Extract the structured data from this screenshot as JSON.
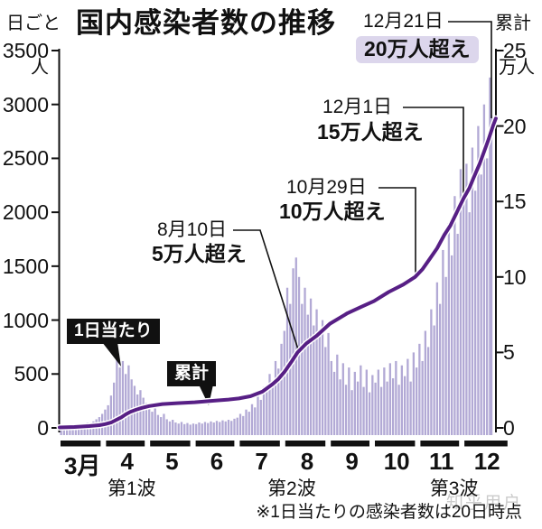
{
  "title": "国内感染者数の推移",
  "left_axis": {
    "title": "日ごと",
    "unit": "人",
    "ticks": [
      "3500",
      "3000",
      "2500",
      "2000",
      "1500",
      "1000",
      "500",
      "0"
    ]
  },
  "right_axis": {
    "title": "累計",
    "unit": "万人",
    "ticks": [
      "25",
      "20",
      "15",
      "10",
      "5",
      "0"
    ]
  },
  "series_labels": {
    "daily": "1日当たり",
    "cumulative": "累計"
  },
  "annotations": [
    {
      "date": "12月21日",
      "event": "20万人超え",
      "highlighted": true
    },
    {
      "date": "12月1日",
      "event": "15万人超え",
      "highlighted": false
    },
    {
      "date": "10月29日",
      "event": "10万人超え",
      "highlighted": false
    },
    {
      "date": "8月10日",
      "event": "5万人超え",
      "highlighted": false
    }
  ],
  "x_axis": {
    "months": [
      "3月",
      "4",
      "5",
      "6",
      "7",
      "8",
      "9",
      "10",
      "11",
      "12"
    ],
    "waves": [
      "第1波",
      "第2波",
      "第3波"
    ]
  },
  "footnote": "※1日当たりの感染者数は20日時点",
  "watermark": "知乎用户",
  "colors": {
    "bar": "#b2a9d5",
    "line": "#571f85",
    "line_casing": "#ffffff",
    "highlight_bg": "#dcd6ec",
    "label_bg": "#111111",
    "label_fg": "#ffffff",
    "axis": "#111111",
    "watermark": "#999999"
  },
  "chart_data": {
    "type": "bar+line",
    "title": "国内感染者数の推移",
    "x_axis": "day offset from 3月1日 (0 = 3月1日)",
    "bar_series": {
      "name": "1日当たり",
      "unit": "人",
      "axis": "left",
      "ylim": [
        0,
        3500
      ],
      "points": [
        [
          1,
          12
        ],
        [
          3,
          18
        ],
        [
          5,
          15
        ],
        [
          7,
          25
        ],
        [
          9,
          22
        ],
        [
          11,
          30
        ],
        [
          13,
          28
        ],
        [
          15,
          38
        ],
        [
          17,
          35
        ],
        [
          19,
          48
        ],
        [
          21,
          45
        ],
        [
          23,
          60
        ],
        [
          25,
          80
        ],
        [
          27,
          100
        ],
        [
          29,
          130
        ],
        [
          31,
          170
        ],
        [
          33,
          210
        ],
        [
          35,
          300
        ],
        [
          37,
          420
        ],
        [
          39,
          660
        ],
        [
          41,
          560
        ],
        [
          43,
          620
        ],
        [
          45,
          500
        ],
        [
          47,
          580
        ],
        [
          49,
          450
        ],
        [
          51,
          390
        ],
        [
          53,
          310
        ],
        [
          55,
          350
        ],
        [
          57,
          280
        ],
        [
          59,
          230
        ],
        [
          61,
          190
        ],
        [
          63,
          150
        ],
        [
          65,
          180
        ],
        [
          67,
          120
        ],
        [
          69,
          100
        ],
        [
          71,
          130
        ],
        [
          73,
          80
        ],
        [
          75,
          60
        ],
        [
          77,
          75
        ],
        [
          79,
          50
        ],
        [
          81,
          40
        ],
        [
          83,
          55
        ],
        [
          85,
          35
        ],
        [
          87,
          45
        ],
        [
          89,
          30
        ],
        [
          91,
          40
        ],
        [
          93,
          35
        ],
        [
          95,
          50
        ],
        [
          97,
          40
        ],
        [
          99,
          55
        ],
        [
          101,
          45
        ],
        [
          103,
          60
        ],
        [
          105,
          50
        ],
        [
          107,
          65
        ],
        [
          109,
          55
        ],
        [
          111,
          70
        ],
        [
          113,
          60
        ],
        [
          115,
          75
        ],
        [
          117,
          65
        ],
        [
          119,
          85
        ],
        [
          121,
          95
        ],
        [
          123,
          130
        ],
        [
          125,
          110
        ],
        [
          127,
          170
        ],
        [
          129,
          150
        ],
        [
          131,
          220
        ],
        [
          133,
          190
        ],
        [
          135,
          290
        ],
        [
          137,
          260
        ],
        [
          139,
          380
        ],
        [
          141,
          340
        ],
        [
          143,
          500
        ],
        [
          145,
          440
        ],
        [
          147,
          620
        ],
        [
          149,
          550
        ],
        [
          151,
          780
        ],
        [
          153,
          900
        ],
        [
          155,
          1300
        ],
        [
          157,
          1150
        ],
        [
          159,
          1480
        ],
        [
          161,
          1580
        ],
        [
          163,
          1400
        ],
        [
          165,
          1150
        ],
        [
          167,
          1300
        ],
        [
          169,
          1050
        ],
        [
          171,
          1200
        ],
        [
          173,
          950
        ],
        [
          175,
          1100
        ],
        [
          177,
          850
        ],
        [
          179,
          1000
        ],
        [
          181,
          750
        ],
        [
          183,
          880
        ],
        [
          185,
          620
        ],
        [
          187,
          520
        ],
        [
          189,
          680
        ],
        [
          191,
          450
        ],
        [
          193,
          600
        ],
        [
          195,
          400
        ],
        [
          197,
          560
        ],
        [
          199,
          350
        ],
        [
          201,
          520
        ],
        [
          203,
          430
        ],
        [
          205,
          580
        ],
        [
          207,
          380
        ],
        [
          209,
          540
        ],
        [
          211,
          330
        ],
        [
          213,
          490
        ],
        [
          215,
          420
        ],
        [
          217,
          540
        ],
        [
          219,
          380
        ],
        [
          221,
          560
        ],
        [
          223,
          430
        ],
        [
          225,
          600
        ],
        [
          227,
          460
        ],
        [
          229,
          620
        ],
        [
          231,
          400
        ],
        [
          233,
          580
        ],
        [
          235,
          480
        ],
        [
          237,
          640
        ],
        [
          239,
          430
        ],
        [
          241,
          700
        ],
        [
          243,
          560
        ],
        [
          245,
          780
        ],
        [
          247,
          620
        ],
        [
          249,
          900
        ],
        [
          251,
          750
        ],
        [
          253,
          1100
        ],
        [
          255,
          950
        ],
        [
          257,
          1350
        ],
        [
          259,
          1150
        ],
        [
          261,
          1650
        ],
        [
          263,
          1400
        ],
        [
          265,
          1900
        ],
        [
          267,
          1600
        ],
        [
          269,
          2150
        ],
        [
          271,
          1800
        ],
        [
          273,
          2400
        ],
        [
          275,
          2100
        ],
        [
          277,
          2450
        ],
        [
          279,
          2000
        ],
        [
          281,
          2600
        ],
        [
          283,
          2200
        ],
        [
          285,
          2800
        ],
        [
          287,
          2350
        ],
        [
          289,
          3000
        ],
        [
          291,
          2500
        ],
        [
          293,
          3250
        ],
        [
          294,
          2900
        ]
      ]
    },
    "line_series": {
      "name": "累計",
      "unit": "万人",
      "axis": "right",
      "ylim": [
        0,
        25
      ],
      "points": [
        [
          0,
          0.03
        ],
        [
          10,
          0.06
        ],
        [
          20,
          0.12
        ],
        [
          27,
          0.18
        ],
        [
          31,
          0.25
        ],
        [
          35,
          0.35
        ],
        [
          38,
          0.5
        ],
        [
          42,
          0.7
        ],
        [
          45,
          0.9
        ],
        [
          48,
          1.05
        ],
        [
          52,
          1.2
        ],
        [
          56,
          1.33
        ],
        [
          61,
          1.45
        ],
        [
          70,
          1.58
        ],
        [
          80,
          1.64
        ],
        [
          92,
          1.7
        ],
        [
          105,
          1.8
        ],
        [
          115,
          1.88
        ],
        [
          122,
          1.95
        ],
        [
          130,
          2.1
        ],
        [
          138,
          2.4
        ],
        [
          145,
          2.9
        ],
        [
          149,
          3.25
        ],
        [
          153,
          3.7
        ],
        [
          158,
          4.4
        ],
        [
          162,
          5.0
        ],
        [
          168,
          5.6
        ],
        [
          175,
          6.1
        ],
        [
          184,
          6.9
        ],
        [
          196,
          7.6
        ],
        [
          205,
          8.0
        ],
        [
          214,
          8.4
        ],
        [
          224,
          9.0
        ],
        [
          234,
          9.5
        ],
        [
          242,
          10.0
        ],
        [
          247,
          10.5
        ],
        [
          252,
          11.2
        ],
        [
          257,
          11.9
        ],
        [
          262,
          12.8
        ],
        [
          266,
          13.4
        ],
        [
          270,
          14.2
        ],
        [
          275,
          15.2
        ],
        [
          279,
          15.9
        ],
        [
          282,
          16.6
        ],
        [
          286,
          17.5
        ],
        [
          289,
          18.3
        ],
        [
          292,
          19.1
        ],
        [
          295,
          20.0
        ],
        [
          297,
          20.5
        ]
      ]
    },
    "milestones": [
      {
        "date": "8月10日",
        "label": "5万人超え",
        "value_man": 5
      },
      {
        "date": "10月29日",
        "label": "10万人超え",
        "value_man": 10
      },
      {
        "date": "12月1日",
        "label": "15万人超え",
        "value_man": 15
      },
      {
        "date": "12月21日",
        "label": "20万人超え",
        "value_man": 20
      }
    ],
    "month_start_days": [
      0,
      31,
      61,
      92,
      122,
      153,
      184,
      214,
      245,
      275
    ],
    "domain_end_day": 308,
    "wave_center_days": [
      49,
      158,
      268.5
    ]
  }
}
